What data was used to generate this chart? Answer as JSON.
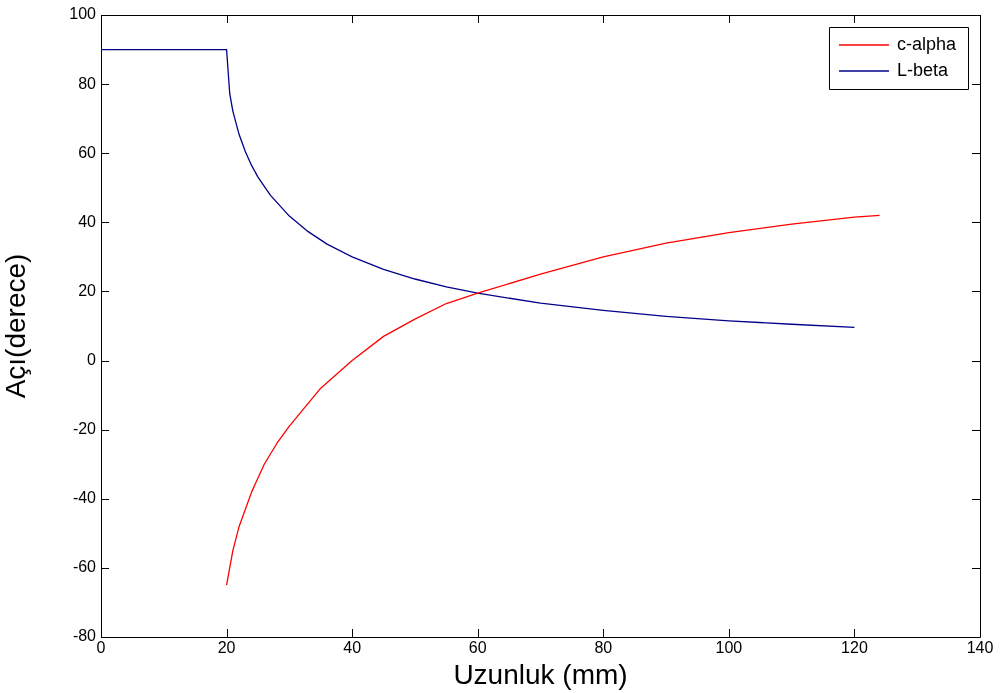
{
  "chart_data": {
    "type": "line",
    "xlabel": "Uzunluk (mm)",
    "ylabel": "Açı(derece)",
    "xlim": [
      0,
      140
    ],
    "xticks": [
      0,
      20,
      40,
      60,
      80,
      100,
      120,
      140
    ],
    "ylim": [
      -80,
      100
    ],
    "yticks": [
      -80,
      -60,
      -40,
      -20,
      0,
      20,
      40,
      60,
      80,
      100
    ],
    "grid": false,
    "legend": "top right",
    "marker": "none",
    "line_style": "solid",
    "series": [
      {
        "name": "c-alpha",
        "color": "#ff0000",
        "x": [
          20,
          21,
          22,
          24,
          26,
          28,
          30,
          35,
          40,
          45,
          50,
          55,
          60,
          70,
          80,
          90,
          100,
          110,
          120,
          124
        ],
        "values": [
          -65,
          -55,
          -48,
          -38,
          -30,
          -24,
          -19,
          -8,
          0,
          7,
          12,
          16.5,
          19.5,
          25,
          30,
          34,
          37,
          39.5,
          41.5,
          42
        ]
      },
      {
        "name": "L-beta",
        "color": "#00008b",
        "x": [
          0,
          20,
          20.5,
          21,
          22,
          23,
          24,
          25,
          27,
          30,
          33,
          36,
          40,
          45,
          50,
          55,
          60,
          70,
          80,
          90,
          100,
          110,
          120
        ],
        "values": [
          90,
          90,
          77.3,
          72.2,
          65.4,
          60.4,
          56.4,
          53.1,
          47.8,
          41.8,
          37.3,
          33.7,
          30,
          26.4,
          23.6,
          21.3,
          19.5,
          16.6,
          14.5,
          12.8,
          11.5,
          10.5,
          9.6
        ]
      }
    ]
  }
}
